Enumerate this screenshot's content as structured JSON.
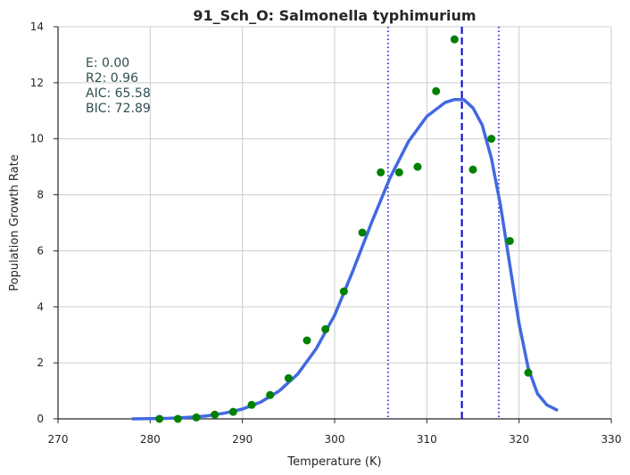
{
  "chart_data": {
    "type": "scatter",
    "title": "91_Sch_O: Salmonella typhimurium",
    "xlabel": "Temperature (K)",
    "ylabel": "Population Growth Rate",
    "xlim": [
      270,
      330
    ],
    "ylim": [
      0,
      14
    ],
    "xticks": [
      270,
      280,
      290,
      300,
      310,
      320,
      330
    ],
    "yticks": [
      0,
      2,
      4,
      6,
      8,
      10,
      12,
      14
    ],
    "grid": true,
    "annotations": [
      "E:  0.00",
      "R2:  0.96",
      "AIC: 65.58",
      "BIC: 72.89"
    ],
    "points": {
      "color": "#008000",
      "x": [
        281,
        283,
        285,
        287,
        289,
        291,
        293,
        295,
        297,
        299,
        301,
        303,
        305,
        307,
        309,
        311,
        313,
        315,
        317,
        319,
        321
      ],
      "y": [
        0.0,
        0.0,
        0.05,
        0.15,
        0.25,
        0.5,
        0.85,
        1.45,
        2.8,
        3.2,
        4.55,
        6.65,
        8.8,
        8.8,
        9.0,
        11.7,
        13.55,
        8.9,
        10.0,
        6.35,
        1.65
      ]
    },
    "fit_curve": {
      "color": "#4169e1",
      "x": [
        278,
        280,
        282,
        284,
        286,
        288,
        290,
        292,
        294,
        296,
        298,
        300,
        302,
        304,
        306,
        308,
        310,
        312,
        313,
        314,
        315,
        316,
        317,
        318,
        319,
        320,
        321,
        322,
        323,
        324.2
      ],
      "y": [
        0.0,
        0.01,
        0.02,
        0.05,
        0.1,
        0.2,
        0.35,
        0.6,
        1.0,
        1.6,
        2.5,
        3.7,
        5.3,
        7.0,
        8.6,
        9.9,
        10.8,
        11.3,
        11.4,
        11.4,
        11.1,
        10.5,
        9.3,
        7.6,
        5.5,
        3.4,
        1.8,
        0.9,
        0.5,
        0.3
      ]
    },
    "vlines": [
      {
        "x": 313.8,
        "style": "dashed",
        "color": "#0000cd"
      },
      {
        "x": 305.8,
        "style": "dotted",
        "color": "#0000cd"
      },
      {
        "x": 317.8,
        "style": "dotted",
        "color": "#0000cd"
      }
    ]
  }
}
